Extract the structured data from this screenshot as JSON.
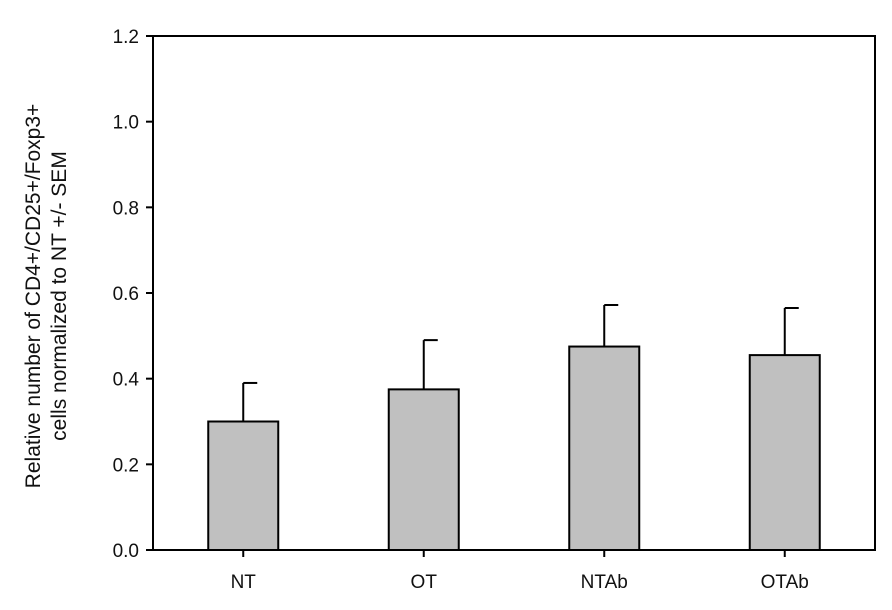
{
  "chart_data": {
    "type": "bar",
    "categories": [
      "NT",
      "OT",
      "NTAb",
      "OTAb"
    ],
    "values": [
      0.3,
      0.375,
      0.475,
      0.455
    ],
    "errors": [
      0.09,
      0.115,
      0.097,
      0.11
    ],
    "ylabel_lines": [
      "Relative number of CD4+/CD25+/Foxp3+",
      "cells normalized to NT +/- SEM"
    ],
    "xlabel": "",
    "ylim": [
      0,
      1.2
    ],
    "yticks": [
      "0.0",
      "0.2",
      "0.4",
      "0.6",
      "0.8",
      "1.0",
      "1.2"
    ],
    "grid": false,
    "legend": "none",
    "bar_color": "#c0c0c0",
    "edge_color": "#000000"
  }
}
